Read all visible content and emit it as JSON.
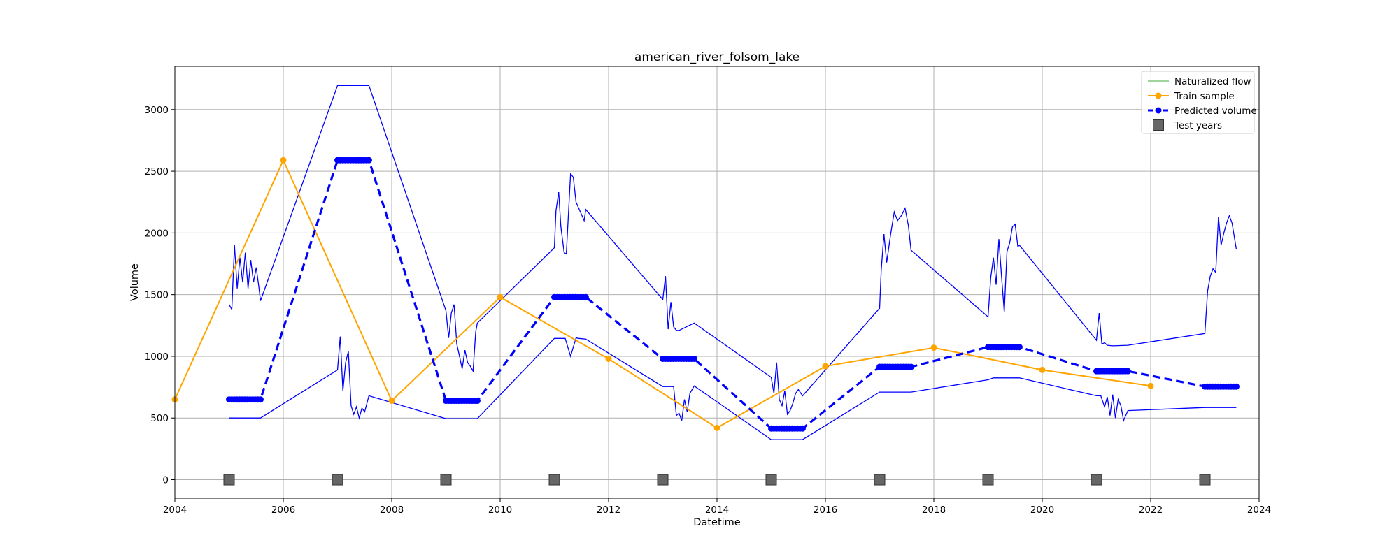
{
  "chart_data": {
    "type": "line",
    "title": "american_river_folsom_lake",
    "xlabel": "Datetime",
    "ylabel": "Volume",
    "xlim": [
      2004.0,
      2024.0
    ],
    "ylim": [
      -150,
      3350
    ],
    "x_ticks": [
      2004,
      2006,
      2008,
      2010,
      2012,
      2014,
      2016,
      2018,
      2020,
      2022,
      2024
    ],
    "x_tick_labels": [
      "2004",
      "2006",
      "2008",
      "2010",
      "2012",
      "2014",
      "2016",
      "2018",
      "2020",
      "2022",
      "2024"
    ],
    "y_ticks": [
      0,
      500,
      1000,
      1500,
      2000,
      2500,
      3000
    ],
    "y_tick_labels": [
      "0",
      "500",
      "1000",
      "1500",
      "2000",
      "2500",
      "3000"
    ],
    "grid": true,
    "legend_position": "top-right",
    "colors": {
      "naturalized_flow": "#7fc97f",
      "train_sample": "#ffa500",
      "predicted_volume": "#0000ff",
      "band": "#0000ff",
      "test_years": "#666666"
    },
    "legend": [
      {
        "label": "Naturalized flow",
        "style": "line",
        "color": "#7fc97f"
      },
      {
        "label": "Train sample",
        "style": "line-marker",
        "color": "#ffa500"
      },
      {
        "label": "Predicted volume",
        "style": "dashed-marker",
        "color": "#0000ff"
      },
      {
        "label": "Test years",
        "style": "square",
        "color": "#666666"
      }
    ],
    "series": [
      {
        "name": "Train sample",
        "x": [
          2004,
          2006,
          2008,
          2010,
          2012,
          2014,
          2016,
          2018,
          2020,
          2022
        ],
        "y": [
          650,
          2590,
          640,
          1480,
          980,
          420,
          920,
          1070,
          890,
          760
        ]
      },
      {
        "name": "Predicted volume",
        "x": [
          2005.0,
          2005.58,
          2007.0,
          2007.58,
          2009.0,
          2009.58,
          2011.0,
          2011.58,
          2013.0,
          2013.58,
          2015.0,
          2015.58,
          2017.0,
          2017.58,
          2019.0,
          2019.58,
          2021.0,
          2021.58,
          2023.0,
          2023.58
        ],
        "y": [
          650,
          650,
          2590,
          2590,
          640,
          640,
          1480,
          1480,
          980,
          980,
          415,
          415,
          915,
          915,
          1075,
          1075,
          880,
          880,
          755,
          755
        ]
      },
      {
        "name": "Test years",
        "x": [
          2005,
          2007,
          2009,
          2011,
          2013,
          2015,
          2017,
          2019,
          2021,
          2023
        ],
        "y": [
          0,
          0,
          0,
          0,
          0,
          0,
          0,
          0,
          0,
          0
        ]
      }
    ],
    "prediction_band": {
      "upper_x": [
        2005.0,
        2005.05,
        2005.1,
        2005.15,
        2005.2,
        2005.25,
        2005.3,
        2005.35,
        2005.4,
        2005.45,
        2005.5,
        2005.55,
        2005.58,
        2007.0,
        2007.58,
        2009.0,
        2009.05,
        2009.1,
        2009.15,
        2009.2,
        2009.25,
        2009.3,
        2009.35,
        2009.4,
        2009.45,
        2009.5,
        2009.55,
        2009.58,
        2011.0,
        2011.03,
        2011.08,
        2011.12,
        2011.18,
        2011.22,
        2011.3,
        2011.35,
        2011.4,
        2011.45,
        2011.5,
        2011.55,
        2011.58,
        2013.0,
        2013.05,
        2013.1,
        2013.15,
        2013.2,
        2013.25,
        2013.3,
        2013.58,
        2015.0,
        2015.05,
        2015.1,
        2015.15,
        2015.2,
        2015.25,
        2015.3,
        2015.35,
        2015.4,
        2015.45,
        2015.5,
        2015.58,
        2017.0,
        2017.03,
        2017.08,
        2017.13,
        2017.2,
        2017.27,
        2017.33,
        2017.4,
        2017.47,
        2017.53,
        2017.58,
        2019.0,
        2019.05,
        2019.1,
        2019.15,
        2019.2,
        2019.25,
        2019.3,
        2019.35,
        2019.4,
        2019.45,
        2019.5,
        2019.55,
        2019.58,
        2021.0,
        2021.05,
        2021.1,
        2021.15,
        2021.2,
        2021.3,
        2021.58,
        2023.0,
        2023.05,
        2023.1,
        2023.15,
        2023.2,
        2023.25,
        2023.3,
        2023.35,
        2023.4,
        2023.45,
        2023.5,
        2023.58
      ],
      "upper_y": [
        1420,
        1380,
        1900,
        1550,
        1800,
        1600,
        1840,
        1550,
        1780,
        1600,
        1720,
        1560,
        1450,
        3195,
        3195,
        1370,
        1150,
        1350,
        1420,
        1100,
        1000,
        900,
        1050,
        950,
        920,
        880,
        1200,
        1270,
        1880,
        2180,
        2330,
        2050,
        1840,
        1830,
        2480,
        2450,
        2250,
        2200,
        2150,
        2100,
        2190,
        1460,
        1650,
        1220,
        1440,
        1240,
        1210,
        1210,
        1270,
        830,
        700,
        950,
        650,
        600,
        720,
        530,
        560,
        620,
        700,
        730,
        680,
        1390,
        1700,
        1990,
        1760,
        1980,
        2170,
        2100,
        2140,
        2200,
        2060,
        1860,
        1320,
        1640,
        1800,
        1580,
        1950,
        1640,
        1360,
        1850,
        1920,
        2050,
        2070,
        1890,
        1900,
        1130,
        1350,
        1100,
        1110,
        1090,
        1085,
        1090,
        1185,
        1530,
        1650,
        1710,
        1680,
        2130,
        1900,
        2000,
        2080,
        2140,
        2080,
        1870
      ],
      "lower_x": [
        2005.0,
        2005.58,
        2007.0,
        2007.05,
        2007.1,
        2007.15,
        2007.2,
        2007.25,
        2007.3,
        2007.35,
        2007.4,
        2007.45,
        2007.5,
        2007.58,
        2009.0,
        2009.58,
        2011.0,
        2011.2,
        2011.3,
        2011.4,
        2011.45,
        2011.58,
        2013.0,
        2013.2,
        2013.25,
        2013.3,
        2013.35,
        2013.4,
        2013.45,
        2013.5,
        2013.58,
        2015.0,
        2015.58,
        2017.0,
        2017.58,
        2019.0,
        2019.1,
        2019.58,
        2021.0,
        2021.08,
        2021.15,
        2021.2,
        2021.25,
        2021.3,
        2021.35,
        2021.4,
        2021.45,
        2021.5,
        2021.58,
        2023.0,
        2023.58
      ],
      "lower_y": [
        500,
        500,
        890,
        1160,
        720,
        950,
        1040,
        600,
        530,
        590,
        500,
        580,
        550,
        680,
        495,
        495,
        1145,
        1145,
        1000,
        1150,
        1145,
        1140,
        755,
        755,
        520,
        540,
        480,
        650,
        550,
        700,
        760,
        325,
        325,
        710,
        710,
        810,
        825,
        825,
        680,
        680,
        590,
        670,
        520,
        690,
        500,
        650,
        600,
        480,
        560,
        585,
        585
      ]
    }
  }
}
